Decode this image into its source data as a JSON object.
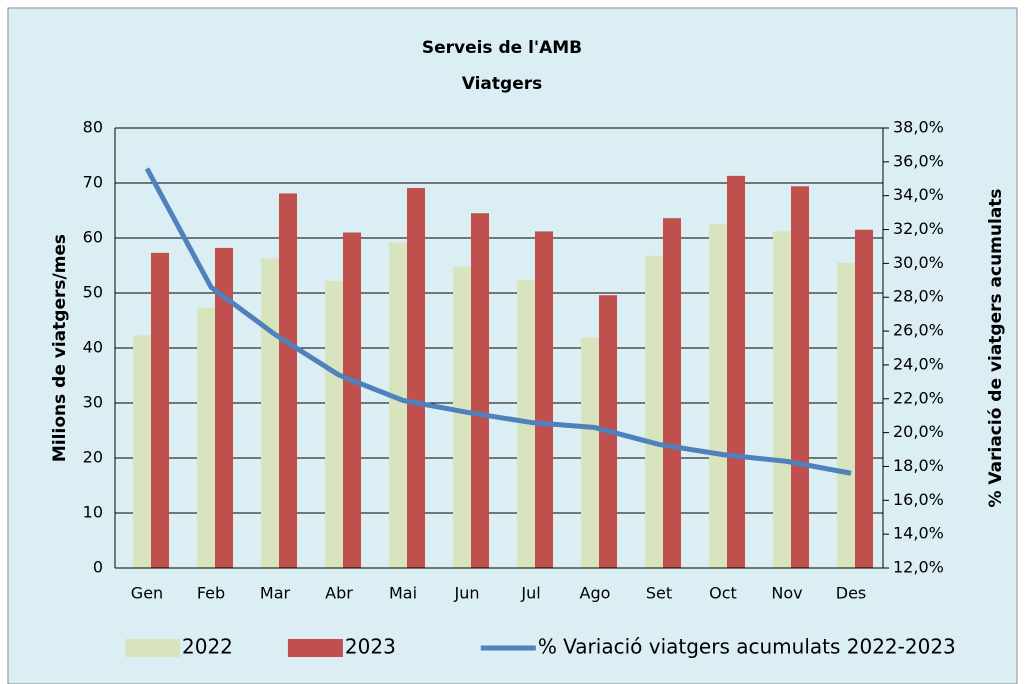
{
  "chart_data": {
    "type": "bar_line",
    "title": "Serveis de l'AMB",
    "subtitle": "Viatgers",
    "y_label": "Milions de viatgers/mes",
    "y2_label": "% Variació de viatgers acumulats",
    "categories": [
      "Gen",
      "Feb",
      "Mar",
      "Abr",
      "Mai",
      "Jun",
      "Jul",
      "Ago",
      "Set",
      "Oct",
      "Nov",
      "Des"
    ],
    "series": [
      {
        "name": "2022",
        "type": "bar",
        "color": "#d7e4bd",
        "values": [
          42.3,
          47.3,
          56.3,
          52.2,
          59.2,
          54.8,
          52.3,
          41.9,
          56.8,
          62.5,
          61.2,
          55.5
        ]
      },
      {
        "name": "2023",
        "type": "bar",
        "color": "#c0504d",
        "values": [
          57.3,
          58.2,
          68.1,
          61.0,
          69.1,
          64.5,
          61.2,
          49.6,
          63.6,
          71.3,
          69.4,
          61.5
        ]
      },
      {
        "name": "% Variació viatgers acumulats 2022-2023",
        "type": "line",
        "axis": "y2",
        "color": "#4f81bd",
        "values": [
          35.6,
          28.6,
          25.8,
          23.4,
          21.9,
          21.2,
          20.6,
          20.3,
          19.3,
          18.7,
          18.3,
          17.6
        ]
      }
    ],
    "ylim": [
      0,
      80
    ],
    "yticks": [
      0,
      10,
      20,
      30,
      40,
      50,
      60,
      70,
      80
    ],
    "y2lim": [
      12,
      38
    ],
    "y2ticks": [
      {
        "value": 12,
        "label": "12,0%"
      },
      {
        "value": 14,
        "label": "14,0%"
      },
      {
        "value": 16,
        "label": "16,0%"
      },
      {
        "value": 18,
        "label": "18,0%"
      },
      {
        "value": 20,
        "label": "20,0%"
      },
      {
        "value": 22,
        "label": "22,0%"
      },
      {
        "value": 24,
        "label": "24,0%"
      },
      {
        "value": 26,
        "label": "26,0%"
      },
      {
        "value": 28,
        "label": "28,0%"
      },
      {
        "value": 30,
        "label": "30,0%"
      },
      {
        "value": 32,
        "label": "32,0%"
      },
      {
        "value": 34,
        "label": "34,0%"
      },
      {
        "value": 36,
        "label": "36,0%"
      },
      {
        "value": 38,
        "label": "38,0%"
      }
    ],
    "grid": true,
    "legend": "bottom"
  }
}
